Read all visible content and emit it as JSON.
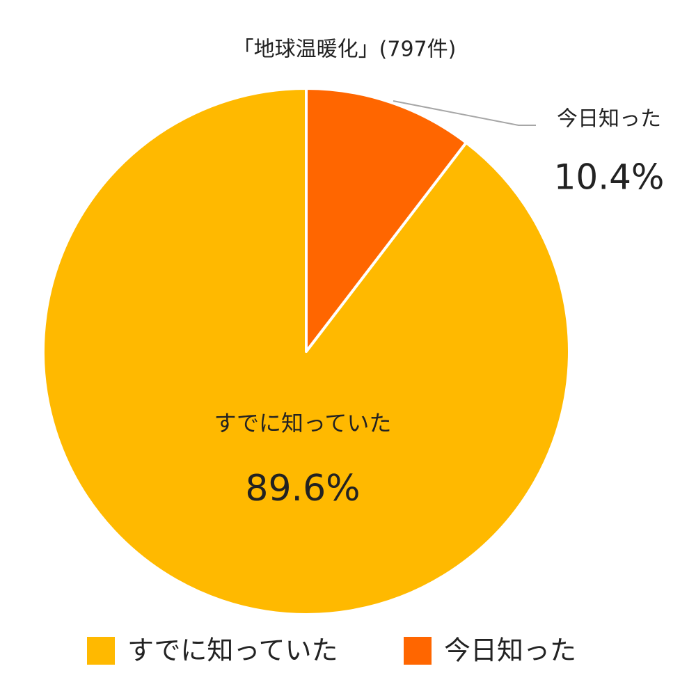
{
  "chart_data": {
    "type": "pie",
    "title": "「地球温暖化」(797件)",
    "categories": [
      "すでに知っていた",
      "今日知った"
    ],
    "values": [
      89.6,
      10.4
    ],
    "value_labels": [
      "89.6%",
      "10.4%"
    ],
    "colors": [
      "#FFB900",
      "#FF6600"
    ],
    "legend": "bottom"
  }
}
